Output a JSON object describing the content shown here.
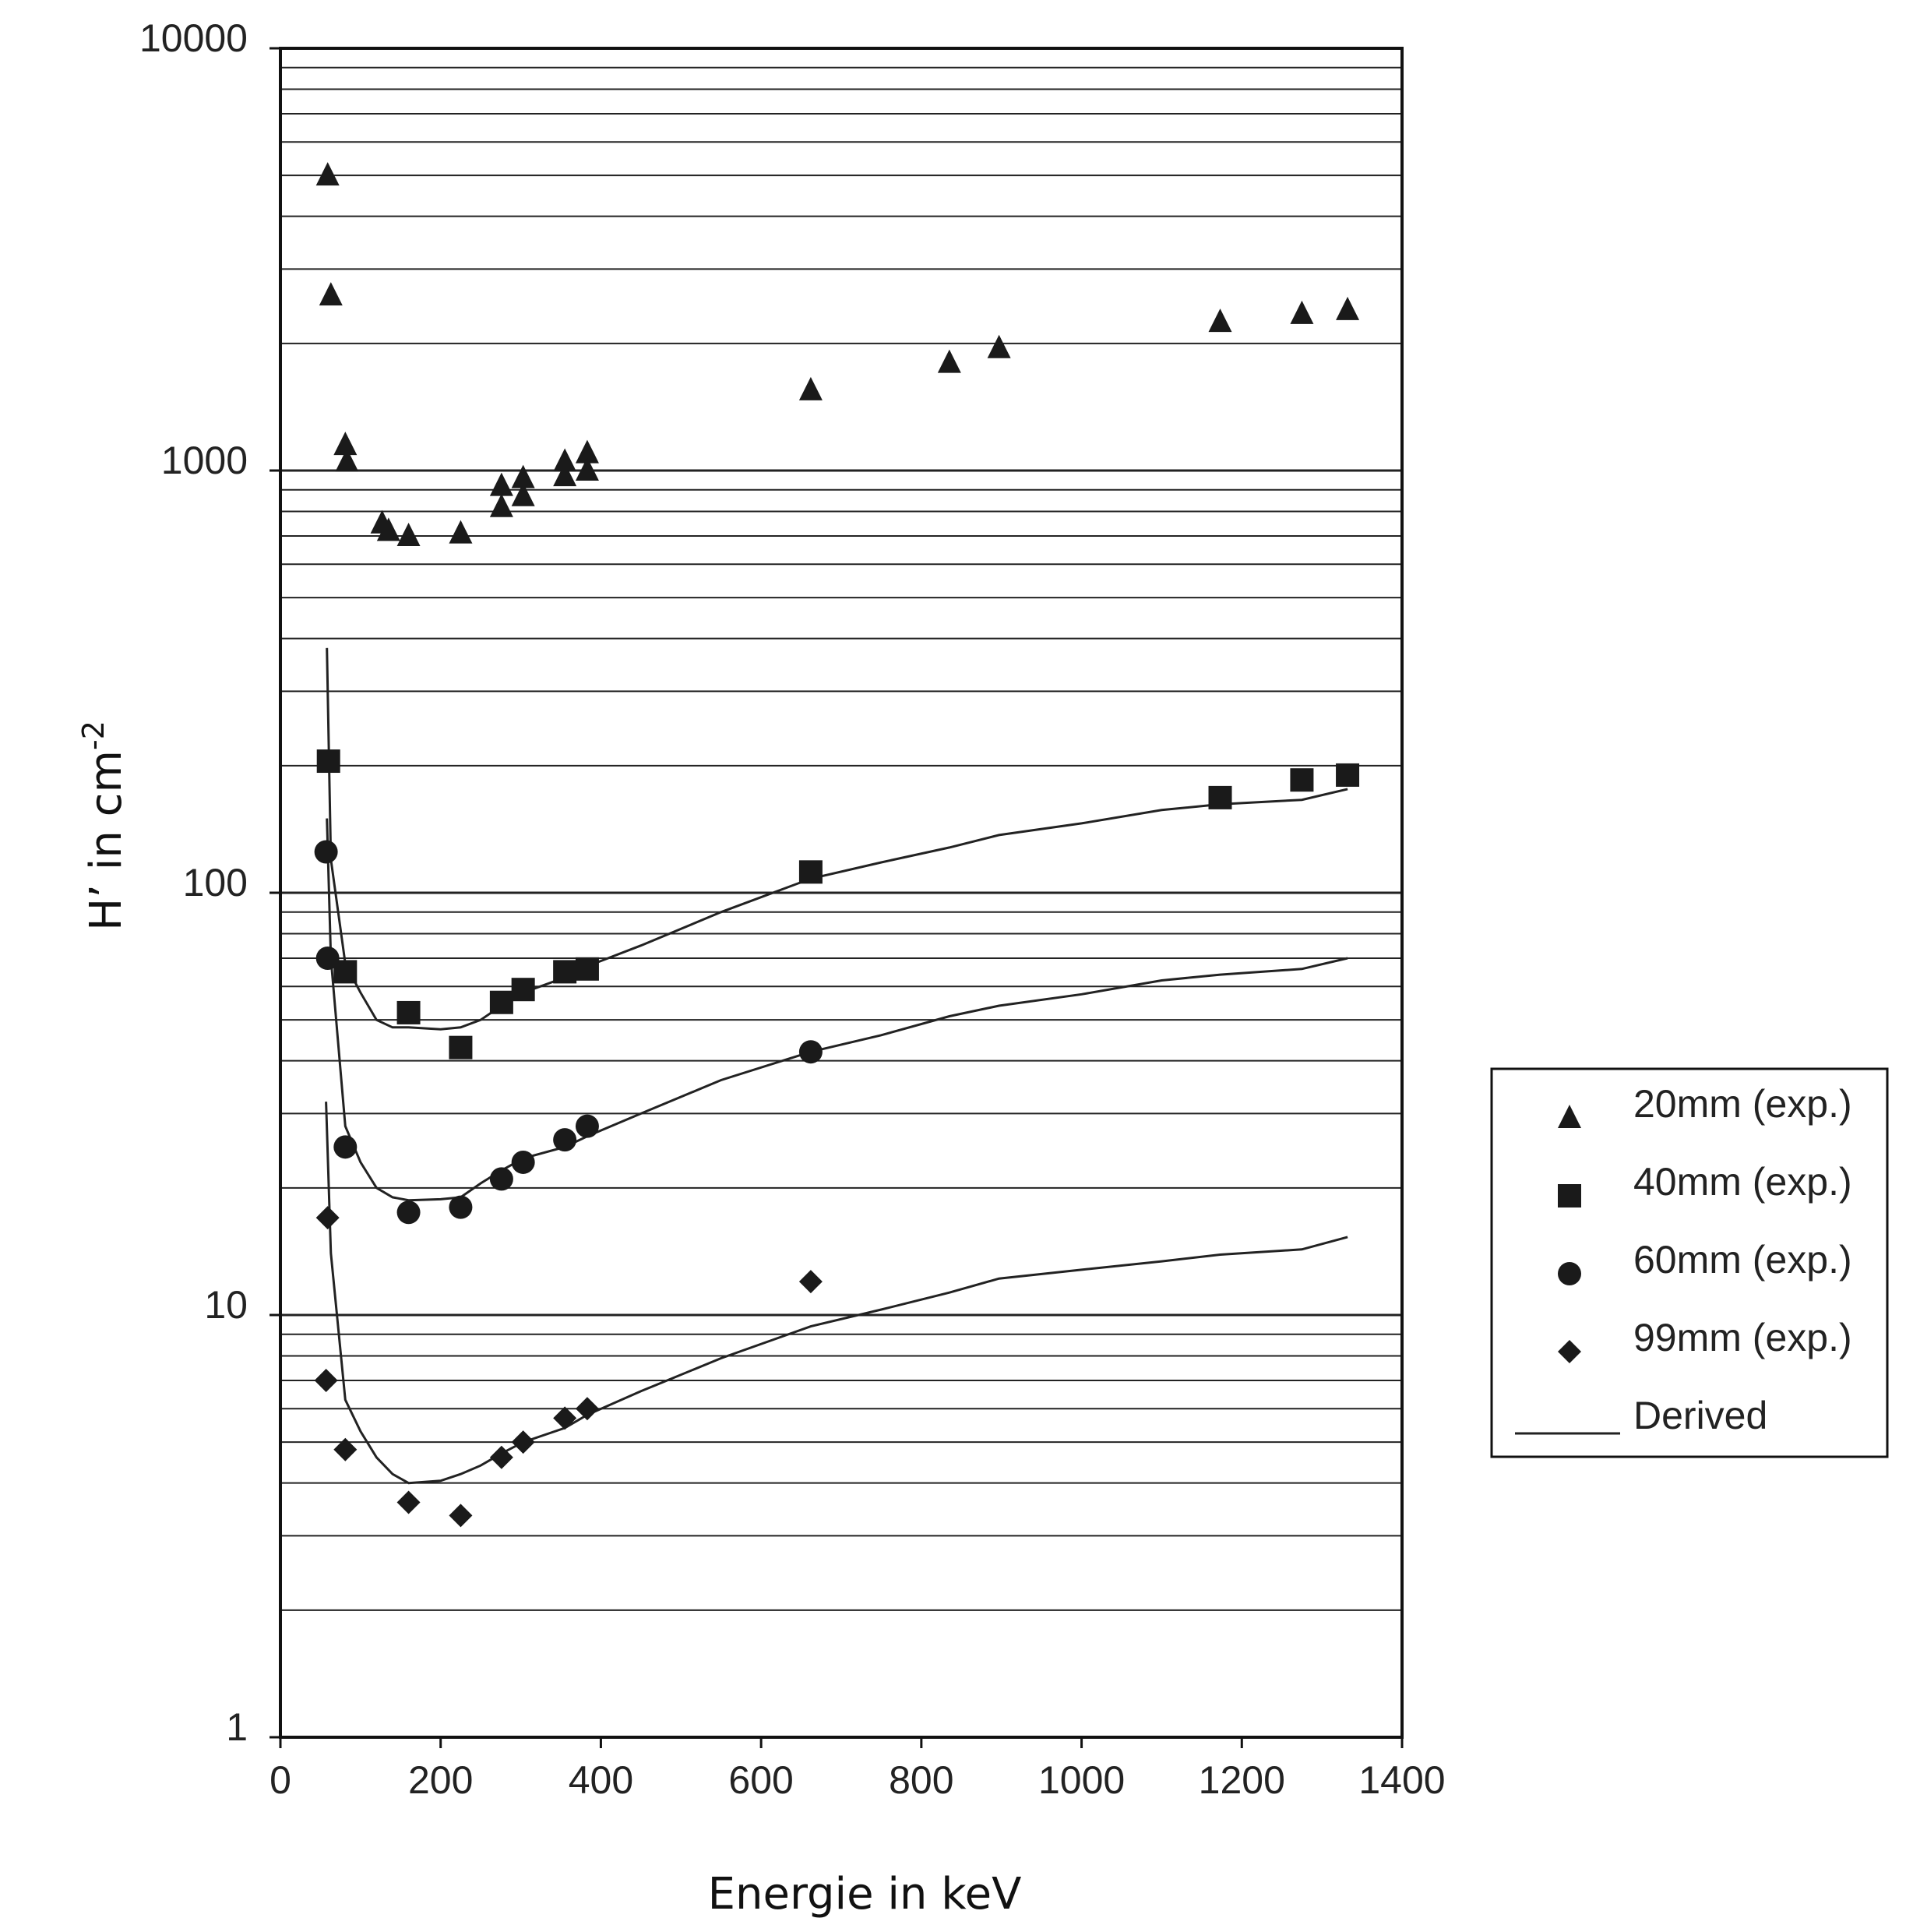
{
  "chart_data": {
    "type": "scatter",
    "title": "",
    "xlabel": "Energie in keV",
    "ylabel_main": "H’ in cm",
    "ylabel_sup": "-2",
    "xlim": [
      0,
      1400
    ],
    "ylim": [
      1,
      10000
    ],
    "yscale": "log",
    "grid": "horizontal",
    "x_ticks": [
      0,
      200,
      400,
      600,
      800,
      1000,
      1200,
      1400
    ],
    "x_tick_labels": [
      "0",
      "200",
      "400",
      "600",
      "800",
      "1000",
      "1200",
      "1400"
    ],
    "y_ticks": [
      1,
      10,
      100,
      1000,
      10000
    ],
    "y_tick_labels": [
      "1",
      "10",
      "100",
      "1000",
      "10000"
    ],
    "legend_position": "right",
    "series": [
      {
        "name": "20mm (exp.)",
        "marker": "triangle",
        "points": [
          [
            59,
            5000
          ],
          [
            63,
            2600
          ],
          [
            81,
            1150
          ],
          [
            83,
            1050
          ],
          [
            127,
            750
          ],
          [
            135,
            720
          ],
          [
            160,
            700
          ],
          [
            225,
            710
          ],
          [
            276,
            920
          ],
          [
            276,
            820
          ],
          [
            303,
            960
          ],
          [
            303,
            870
          ],
          [
            355,
            1050
          ],
          [
            355,
            970
          ],
          [
            383,
            1100
          ],
          [
            383,
            1000
          ],
          [
            662,
            1550
          ],
          [
            835,
            1800
          ],
          [
            897,
            1950
          ],
          [
            1173,
            2250
          ],
          [
            1275,
            2350
          ],
          [
            1332,
            2400
          ]
        ]
      },
      {
        "name": "40mm (exp.)",
        "marker": "square",
        "points": [
          [
            60,
            205
          ],
          [
            81,
            65
          ],
          [
            160,
            52
          ],
          [
            225,
            43
          ],
          [
            276,
            55
          ],
          [
            303,
            59
          ],
          [
            355,
            65
          ],
          [
            383,
            66
          ],
          [
            662,
            112
          ],
          [
            1173,
            168
          ],
          [
            1275,
            185
          ],
          [
            1332,
            190
          ]
        ]
      },
      {
        "name": "60mm (exp.)",
        "marker": "circle",
        "points": [
          [
            57,
            125
          ],
          [
            59,
            70
          ],
          [
            81,
            25
          ],
          [
            160,
            17.5
          ],
          [
            225,
            18
          ],
          [
            276,
            21
          ],
          [
            303,
            23
          ],
          [
            355,
            26
          ],
          [
            383,
            28
          ],
          [
            662,
            42
          ]
        ]
      },
      {
        "name": "99mm (exp.)",
        "marker": "diamond",
        "points": [
          [
            59,
            17
          ],
          [
            57,
            7
          ],
          [
            81,
            4.8
          ],
          [
            160,
            3.6
          ],
          [
            225,
            3.35
          ],
          [
            276,
            4.6
          ],
          [
            303,
            5
          ],
          [
            355,
            5.7
          ],
          [
            383,
            6
          ],
          [
            662,
            12
          ]
        ]
      }
    ],
    "derived_curves": [
      {
        "name": "Derived (40mm)",
        "points": [
          [
            58,
            380
          ],
          [
            63,
            120
          ],
          [
            81,
            68
          ],
          [
            100,
            58
          ],
          [
            120,
            50
          ],
          [
            140,
            48
          ],
          [
            160,
            48
          ],
          [
            200,
            47.5
          ],
          [
            225,
            48
          ],
          [
            250,
            50
          ],
          [
            276,
            54
          ],
          [
            303,
            58
          ],
          [
            355,
            63
          ],
          [
            383,
            67
          ],
          [
            450,
            75
          ],
          [
            550,
            90
          ],
          [
            662,
            108
          ],
          [
            750,
            118
          ],
          [
            835,
            128
          ],
          [
            897,
            137
          ],
          [
            1000,
            146
          ],
          [
            1100,
            157
          ],
          [
            1173,
            162
          ],
          [
            1275,
            166
          ],
          [
            1332,
            176
          ]
        ]
      },
      {
        "name": "Derived (60mm)",
        "points": [
          [
            58,
            150
          ],
          [
            63,
            70
          ],
          [
            81,
            28
          ],
          [
            100,
            23
          ],
          [
            120,
            20
          ],
          [
            140,
            19
          ],
          [
            160,
            18.7
          ],
          [
            200,
            18.8
          ],
          [
            225,
            19
          ],
          [
            250,
            20.5
          ],
          [
            276,
            22
          ],
          [
            303,
            23.5
          ],
          [
            355,
            25
          ],
          [
            383,
            26.5
          ],
          [
            450,
            30
          ],
          [
            550,
            36
          ],
          [
            662,
            42
          ],
          [
            750,
            46
          ],
          [
            835,
            51
          ],
          [
            897,
            54
          ],
          [
            1000,
            57.5
          ],
          [
            1100,
            62
          ],
          [
            1173,
            64
          ],
          [
            1275,
            66
          ],
          [
            1332,
            70
          ]
        ]
      },
      {
        "name": "Derived (99mm)",
        "points": [
          [
            57,
            32
          ],
          [
            63,
            14
          ],
          [
            81,
            6.3
          ],
          [
            100,
            5.3
          ],
          [
            120,
            4.6
          ],
          [
            140,
            4.2
          ],
          [
            160,
            4.0
          ],
          [
            200,
            4.05
          ],
          [
            225,
            4.2
          ],
          [
            250,
            4.4
          ],
          [
            276,
            4.7
          ],
          [
            303,
            5.0
          ],
          [
            355,
            5.4
          ],
          [
            383,
            5.8
          ],
          [
            450,
            6.6
          ],
          [
            550,
            7.9
          ],
          [
            662,
            9.4
          ],
          [
            750,
            10.3
          ],
          [
            835,
            11.3
          ],
          [
            897,
            12.2
          ],
          [
            1000,
            12.8
          ],
          [
            1100,
            13.4
          ],
          [
            1173,
            13.9
          ],
          [
            1275,
            14.3
          ],
          [
            1332,
            15.3
          ]
        ]
      }
    ],
    "legend": {
      "entries": [
        "20mm (exp.)",
        "40mm (exp.)",
        "60mm (exp.)",
        "99mm (exp.)",
        "Derived"
      ]
    }
  }
}
